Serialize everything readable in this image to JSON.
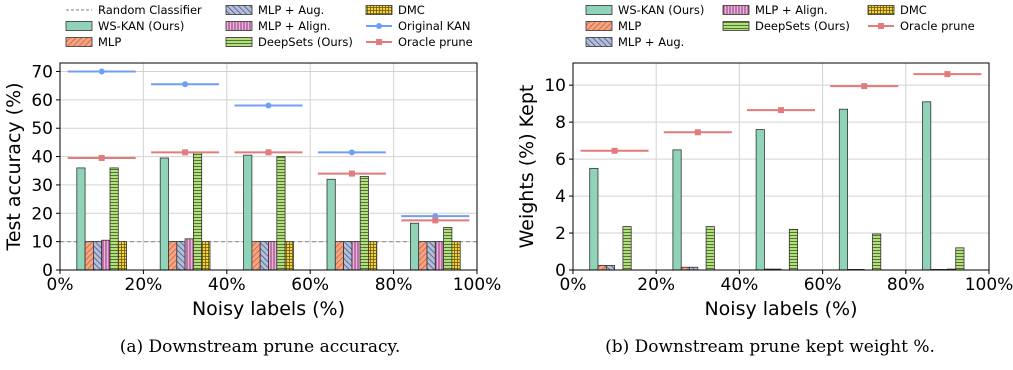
{
  "captions": {
    "a": "(a) Downstream prune accuracy.",
    "b": "(b) Downstream prune kept weight %."
  },
  "colors": {
    "WS-KAN (Ours)": "#8fd3b8",
    "MLP": "#f4a582",
    "MLP + Aug.": "#b4bfd9",
    "MLP + Align.": "#e7b3d6",
    "DeepSets (Ours)": "#b7dc87",
    "DMC": "#f2d24a",
    "Original KAN": "#6f9ff5",
    "Oracle prune": "#e27b7b",
    "Random Classifier": "#9a9a9a"
  },
  "chart_data": [
    {
      "id": "a",
      "type": "bar",
      "xlabel": "Noisy labels (%)",
      "ylabel": "Test accuracy (%)",
      "xlim": [
        0,
        100
      ],
      "ylim": [
        0,
        73
      ],
      "xticks": [
        "0%",
        "20%",
        "40%",
        "60%",
        "80%",
        "100%"
      ],
      "yticks": [
        "0",
        "10",
        "20",
        "30",
        "40",
        "50",
        "60",
        "70"
      ],
      "categories": [
        10,
        30,
        50,
        70,
        90
      ],
      "grid": true,
      "legend": {
        "position": "top",
        "columns": [
          [
            "Random Classifier",
            "WS-KAN (Ours)",
            "MLP"
          ],
          [
            "MLP + Aug.",
            "MLP + Align.",
            "DeepSets (Ours)"
          ],
          [
            "DMC",
            "Original KAN",
            "Oracle prune"
          ]
        ]
      },
      "series": [
        {
          "name": "WS-KAN (Ours)",
          "values": [
            36,
            39.5,
            40.5,
            32,
            16.5
          ]
        },
        {
          "name": "MLP",
          "values": [
            10,
            10,
            10,
            10,
            10
          ]
        },
        {
          "name": "MLP + Aug.",
          "values": [
            10,
            10,
            10,
            10,
            10
          ]
        },
        {
          "name": "MLP + Align.",
          "values": [
            10.5,
            11,
            10,
            10,
            10
          ]
        },
        {
          "name": "DeepSets (Ours)",
          "values": [
            36,
            41.5,
            40,
            33,
            15
          ]
        },
        {
          "name": "DMC",
          "values": [
            10,
            10,
            10,
            10,
            10
          ]
        }
      ],
      "reference_lines": [
        {
          "name": "Original KAN",
          "values": [
            70,
            65.5,
            58,
            41.5,
            19
          ]
        },
        {
          "name": "Oracle prune",
          "values": [
            39.5,
            41.5,
            41.5,
            34,
            17.5
          ]
        }
      ],
      "baseline": {
        "name": "Random Classifier",
        "value": 10
      }
    },
    {
      "id": "b",
      "type": "bar",
      "xlabel": "Noisy labels (%)",
      "ylabel": "Weights (%) Kept",
      "xlim": [
        0,
        100
      ],
      "ylim": [
        0,
        11.2
      ],
      "xticks": [
        "0%",
        "20%",
        "40%",
        "60%",
        "80%",
        "100%"
      ],
      "yticks": [
        "0",
        "2",
        "4",
        "6",
        "8",
        "10"
      ],
      "categories": [
        10,
        30,
        50,
        70,
        90
      ],
      "grid": true,
      "legend": {
        "position": "top",
        "columns": [
          [
            "WS-KAN (Ours)",
            "MLP",
            "MLP + Aug."
          ],
          [
            "MLP + Align.",
            "DeepSets (Ours)"
          ],
          [
            "DMC",
            "Oracle prune"
          ]
        ]
      },
      "series": [
        {
          "name": "WS-KAN (Ours)",
          "values": [
            5.5,
            6.5,
            7.6,
            8.7,
            9.1
          ]
        },
        {
          "name": "MLP",
          "values": [
            0.25,
            0.15,
            0.05,
            0.03,
            0.03
          ]
        },
        {
          "name": "MLP + Aug.",
          "values": [
            0.25,
            0.15,
            0.05,
            0.03,
            0.03
          ]
        },
        {
          "name": "MLP + Align.",
          "values": [
            0.0,
            0.0,
            0.0,
            0.0,
            0.05
          ]
        },
        {
          "name": "DeepSets (Ours)",
          "values": [
            2.35,
            2.35,
            2.2,
            1.95,
            1.2
          ]
        },
        {
          "name": "DMC",
          "values": [
            0.0,
            0.0,
            0.0,
            0.0,
            0.0
          ]
        }
      ],
      "reference_lines": [
        {
          "name": "Oracle prune",
          "values": [
            6.45,
            7.45,
            8.65,
            9.95,
            10.6
          ]
        }
      ]
    }
  ]
}
